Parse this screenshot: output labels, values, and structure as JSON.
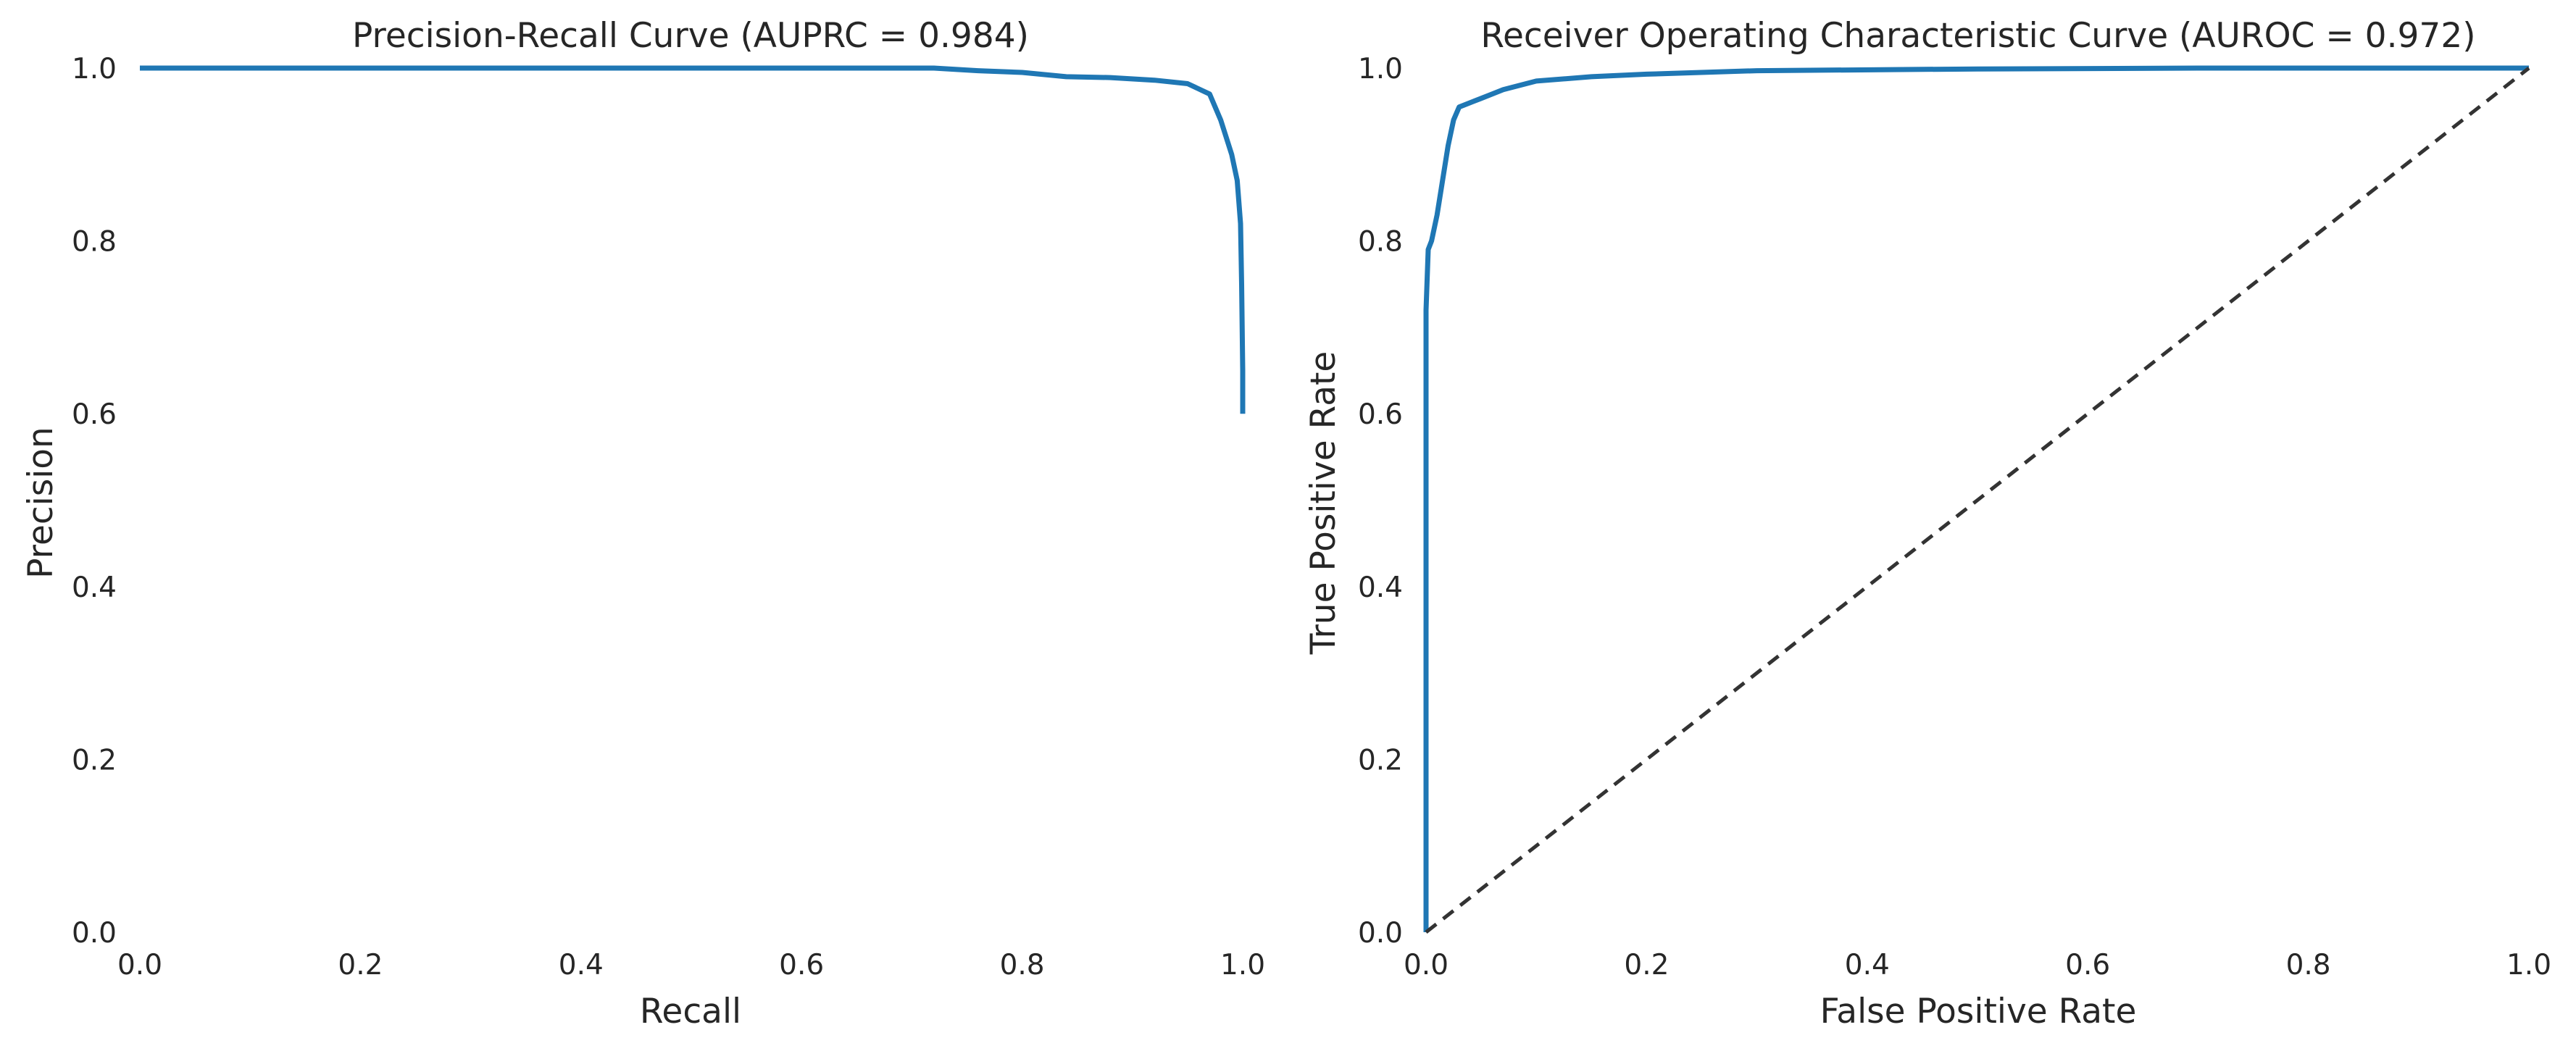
{
  "chart_data": [
    {
      "type": "line",
      "title": "Precision-Recall Curve (AUPRC = 0.984)",
      "xlabel": "Recall",
      "ylabel": "Precision",
      "xlim": [
        0.0,
        1.0
      ],
      "ylim": [
        0.0,
        1.0
      ],
      "xticks": [
        "0.0",
        "0.2",
        "0.4",
        "0.6",
        "0.8",
        "1.0"
      ],
      "yticks": [
        "0.0",
        "0.2",
        "0.4",
        "0.6",
        "0.8",
        "1.0"
      ],
      "grid": false,
      "series": [
        {
          "color": "#1f77b4",
          "x": [
            0.0,
            0.72,
            0.76,
            0.8,
            0.84,
            0.88,
            0.92,
            0.95,
            0.97,
            0.98,
            0.99,
            0.995,
            0.998,
            0.999,
            1.0,
            1.0
          ],
          "y": [
            1.0,
            1.0,
            0.997,
            0.995,
            0.99,
            0.989,
            0.986,
            0.982,
            0.97,
            0.94,
            0.9,
            0.87,
            0.82,
            0.75,
            0.65,
            0.6
          ]
        }
      ]
    },
    {
      "type": "line",
      "title": "Receiver Operating Characteristic Curve (AUROC = 0.972)",
      "xlabel": "False Positive Rate",
      "ylabel": "True Positive Rate",
      "xlim": [
        0.0,
        1.0
      ],
      "ylim": [
        0.0,
        1.0
      ],
      "xticks": [
        "0.0",
        "0.2",
        "0.4",
        "0.6",
        "0.8",
        "1.0"
      ],
      "yticks": [
        "0.0",
        "0.2",
        "0.4",
        "0.6",
        "0.8",
        "1.0"
      ],
      "grid": false,
      "series": [
        {
          "color": "#1f77b4",
          "x": [
            0.0,
            0.0,
            0.002,
            0.005,
            0.01,
            0.015,
            0.02,
            0.025,
            0.03,
            0.04,
            0.05,
            0.07,
            0.1,
            0.15,
            0.2,
            0.3,
            0.5,
            0.7,
            1.0
          ],
          "y": [
            0.0,
            0.72,
            0.79,
            0.8,
            0.83,
            0.87,
            0.91,
            0.94,
            0.955,
            0.96,
            0.965,
            0.975,
            0.985,
            0.99,
            0.993,
            0.997,
            0.999,
            1.0,
            1.0
          ]
        },
        {
          "color": "#333333",
          "dashed": true,
          "x": [
            0.0,
            1.0
          ],
          "y": [
            0.0,
            1.0
          ]
        }
      ]
    }
  ]
}
